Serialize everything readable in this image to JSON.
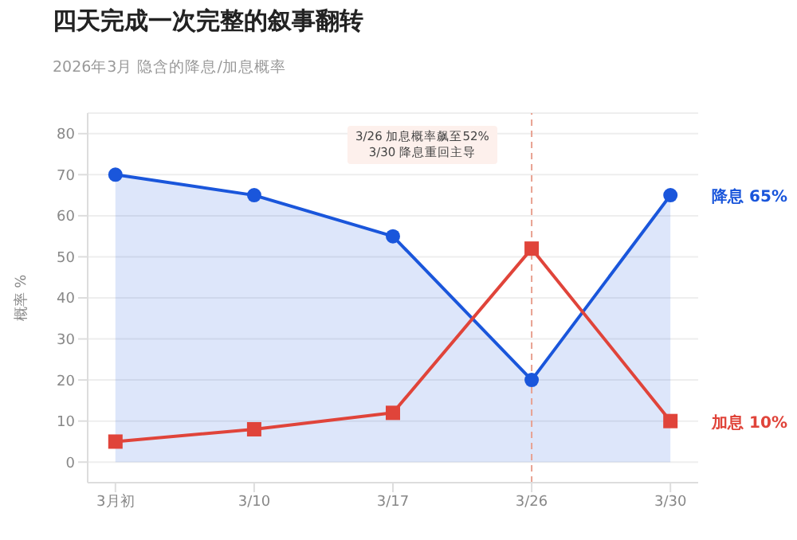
{
  "chart_data": {
    "type": "line",
    "title": "四天完成一次完整的叙事翻转",
    "subtitle": "2026年3月 隐含的降息/加息概率",
    "ylabel": "概率 %",
    "categories": [
      "3月初",
      "3/10",
      "3/17",
      "3/26",
      "3/30"
    ],
    "series": [
      {
        "name": "降息",
        "type": "area",
        "color": "#1a56db",
        "marker": "circle",
        "values": [
          70,
          65,
          55,
          20,
          65
        ],
        "value_labels": [
          null,
          null,
          null,
          null,
          "65%"
        ]
      },
      {
        "name": "加息",
        "color": "#e0443a",
        "marker": "square",
        "values": [
          5,
          8,
          12,
          52,
          10
        ],
        "value_labels": [
          null,
          null,
          null,
          null,
          "10%"
        ]
      }
    ],
    "ylim": [
      -5,
      85
    ],
    "yticks": [
      0,
      10,
      20,
      30,
      40,
      50,
      60,
      70,
      80
    ],
    "grid": "y",
    "legend": false,
    "ref_lines": [
      {
        "axis": "x",
        "value": "3/26",
        "color": "#e8a090",
        "line_style": "dashed"
      }
    ],
    "annotations": [
      "3/26 加息概率飙至52%",
      "3/30 降息重回主导"
    ]
  }
}
